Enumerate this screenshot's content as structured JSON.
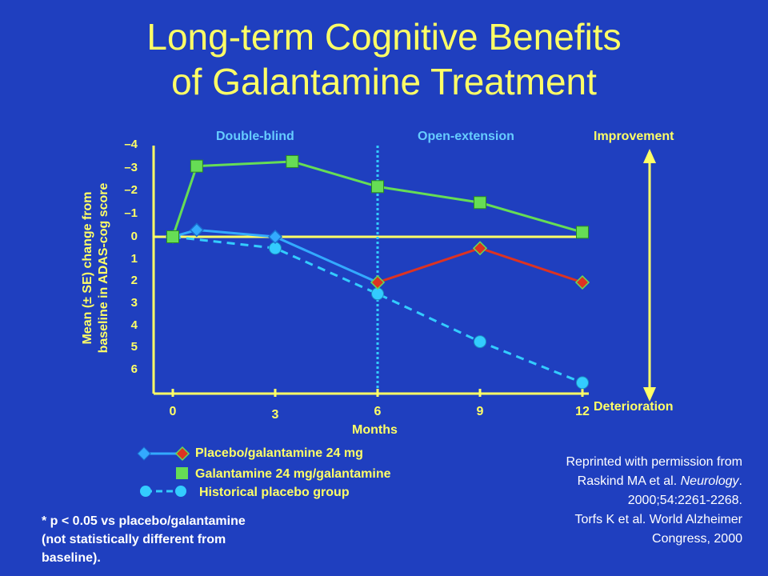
{
  "title_line1": "Long-term Cognitive Benefits",
  "title_line2": "of Galantamine Treatment",
  "phase_labels": {
    "double_blind": "Double-blind",
    "open_extension": "Open-extension"
  },
  "direction_labels": {
    "improvement": "Improvement",
    "deterioration": "Deterioration"
  },
  "legend": {
    "placebo": "Placebo/galantamine 24 mg",
    "galantamine": "Galantamine 24 mg/galantamine",
    "historical": "Historical placebo group"
  },
  "footnote": {
    "line1": "* p < 0.05 vs placebo/galantamine",
    "line2": "(not statistically different from",
    "line3": "baseline)."
  },
  "credit": {
    "line1": "Reprinted with permission from",
    "line2a": "Raskind MA et al. ",
    "line2b": "Neurology",
    "line2c": ".",
    "line3": "2000;54:2261-2268.",
    "line4": "Torfs K et al. World Alzheimer",
    "line5": "Congress, 2000"
  },
  "colors": {
    "background": "#1f3fbf",
    "title": "#ffff66",
    "galantamine": "#66dd55",
    "placebo_db": "#33aaff",
    "placebo_ext": "#dd3322",
    "historical": "#33ccff",
    "axis": "#ffff66"
  },
  "chart_data": {
    "type": "line",
    "xlabel": "Months",
    "ylabel_line1": "Mean (± SE) change from",
    "ylabel_line2": "baseline in ADAS-cog  score",
    "x_ticks": [
      "0",
      "3",
      "6",
      "9",
      "12"
    ],
    "y_ticks": [
      "–4",
      "–3",
      "–2",
      "–1",
      "0",
      "1",
      "2",
      "3",
      "4",
      "5",
      "6"
    ],
    "ylim": [
      -4,
      6.6
    ],
    "xlim": [
      0,
      12
    ],
    "y_inverted": true,
    "phase_divider_month": 6,
    "series": [
      {
        "name": "Galantamine 24 mg/galantamine",
        "marker": "square",
        "x": [
          0,
          0.7,
          3.5,
          6,
          9,
          12
        ],
        "y": [
          0,
          -3.1,
          -3.3,
          -2.2,
          -1.5,
          -0.2
        ]
      },
      {
        "name": "Placebo/galantamine 24 mg",
        "marker": "diamond",
        "x": [
          0,
          0.7,
          3,
          6
        ],
        "y": [
          0,
          -0.3,
          0,
          2.0
        ]
      },
      {
        "name": "Placebo/galantamine 24 mg (open-extension)",
        "marker": "diamond",
        "x": [
          6,
          9,
          12
        ],
        "y": [
          2.0,
          0.5,
          2.0
        ]
      },
      {
        "name": "Historical placebo group",
        "marker": "circle",
        "dashed": true,
        "x": [
          0,
          3,
          6,
          9,
          12
        ],
        "y": [
          0,
          0.5,
          2.5,
          4.6,
          6.4
        ]
      }
    ]
  }
}
